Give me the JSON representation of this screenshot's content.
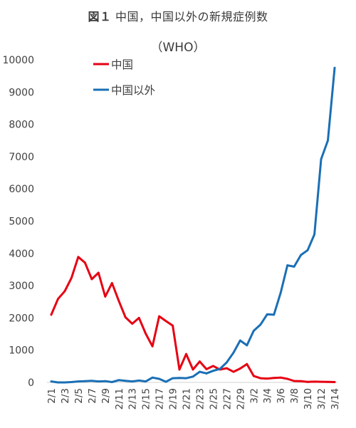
{
  "title": {
    "label": "図１",
    "text": "中国，中国以外の新規症例数",
    "subtitle": "（WHO）"
  },
  "chart_data": {
    "type": "line",
    "title": "図１ 中国，中国以外の新規症例数（WHO）",
    "xlabel": "",
    "ylabel": "",
    "ylim": [
      0,
      10000
    ],
    "yticks": [
      0,
      1000,
      2000,
      3000,
      4000,
      5000,
      6000,
      7000,
      8000,
      9000,
      10000
    ],
    "grid": false,
    "legend_position": "top-left",
    "categories": [
      "2/1",
      "2/2",
      "2/3",
      "2/4",
      "2/5",
      "2/6",
      "2/7",
      "2/8",
      "2/9",
      "2/10",
      "2/11",
      "2/12",
      "2/13",
      "2/14",
      "2/15",
      "2/16",
      "2/17",
      "2/18",
      "2/19",
      "2/20",
      "2/21",
      "2/22",
      "2/23",
      "2/24",
      "2/25",
      "2/26",
      "2/27",
      "2/28",
      "2/29",
      "3/1",
      "3/2",
      "3/3",
      "3/4",
      "3/5",
      "3/6",
      "3/7",
      "3/8",
      "3/9",
      "3/10",
      "3/11",
      "3/12",
      "3/13",
      "3/14"
    ],
    "tick_labels": [
      "2/1",
      "2/3",
      "2/5",
      "2/7",
      "2/9",
      "2/11",
      "2/13",
      "2/15",
      "2/17",
      "2/19",
      "2/21",
      "2/23",
      "2/25",
      "2/27",
      "2/29",
      "3/2",
      "3/4",
      "3/6",
      "3/8",
      "3/10",
      "3/12",
      "3/14"
    ],
    "series": [
      {
        "name": "中国",
        "color": "#e60012",
        "values": [
          2100,
          2590,
          2830,
          3240,
          3890,
          3710,
          3200,
          3400,
          2660,
          3080,
          2530,
          2020,
          1820,
          2000,
          1510,
          1120,
          2050,
          1900,
          1760,
          400,
          880,
          400,
          650,
          410,
          510,
          400,
          440,
          330,
          430,
          570,
          200,
          130,
          120,
          140,
          150,
          110,
          45,
          40,
          15,
          25,
          20,
          15,
          10
        ]
      },
      {
        "name": "中国以外",
        "color": "#1a6fb5",
        "values": [
          30,
          0,
          0,
          10,
          30,
          40,
          50,
          30,
          40,
          10,
          70,
          50,
          30,
          60,
          30,
          150,
          110,
          20,
          130,
          140,
          130,
          180,
          330,
          280,
          360,
          420,
          620,
          920,
          1300,
          1150,
          1600,
          1790,
          2110,
          2100,
          2780,
          3630,
          3590,
          3950,
          4100,
          4590,
          6920,
          7500,
          9750
        ]
      }
    ]
  }
}
